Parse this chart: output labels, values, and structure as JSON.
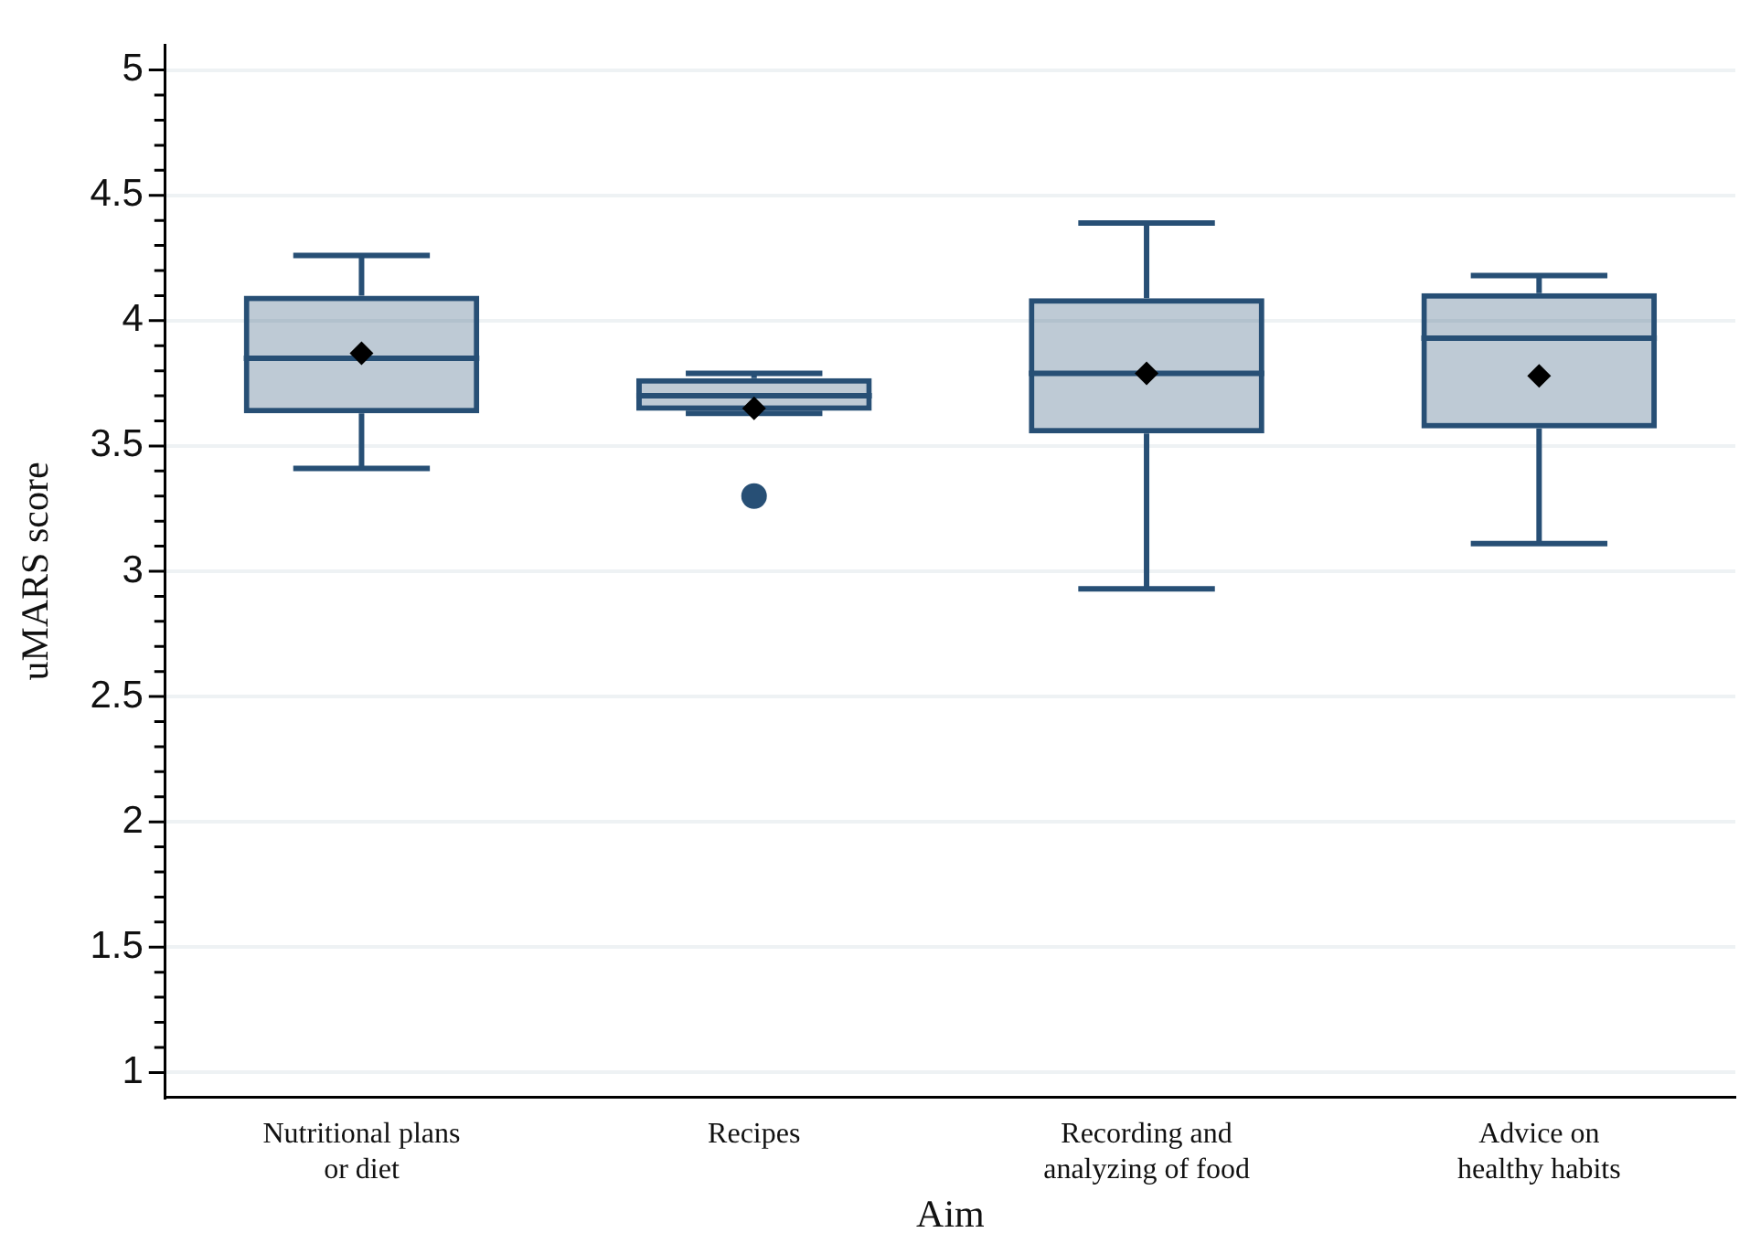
{
  "chart_data": {
    "type": "box",
    "xlabel": "Aim",
    "ylabel": "uMARS score",
    "categories": [
      "Nutritional plans\nor diet",
      "Recipes",
      "Recording and\nanalyzing of food",
      "Advice on\nhealthy habits"
    ],
    "boxes": [
      {
        "low": 3.41,
        "q1": 3.63,
        "median": 3.85,
        "q3": 4.1,
        "high": 4.26,
        "mean": 3.87
      },
      {
        "low": 3.63,
        "q1": 3.64,
        "median": 3.7,
        "q3": 3.77,
        "high": 3.79,
        "mean": 3.65,
        "outliers": [
          3.3
        ]
      },
      {
        "low": 2.93,
        "q1": 3.55,
        "median": 3.79,
        "q3": 4.09,
        "high": 4.39,
        "mean": 3.79
      },
      {
        "low": 3.11,
        "q1": 3.57,
        "median": 3.93,
        "q3": 4.11,
        "high": 4.18,
        "mean": 3.78
      }
    ],
    "color": "#274f75",
    "ylim": [
      0.9,
      5.1
    ],
    "yticks": [
      1,
      {
        "value": 1.1,
        "label": null
      },
      {
        "value": 1.2,
        "label": null
      },
      {
        "value": 1.3,
        "label": null
      },
      {
        "value": 1.4,
        "label": null
      },
      1.5,
      {
        "value": 1.6,
        "label": null
      },
      {
        "value": 1.7,
        "label": null
      },
      {
        "value": 1.8,
        "label": null
      },
      {
        "value": 1.9,
        "label": null
      },
      2,
      {
        "value": 2.1,
        "label": null
      },
      {
        "value": 2.2,
        "label": null
      },
      {
        "value": 2.3,
        "label": null
      },
      {
        "value": 2.4,
        "label": null
      },
      2.5,
      {
        "value": 2.6,
        "label": null
      },
      {
        "value": 2.7,
        "label": null
      },
      {
        "value": 2.8,
        "label": null
      },
      {
        "value": 2.9,
        "label": null
      },
      3,
      {
        "value": 3.1,
        "label": null
      },
      {
        "value": 3.2,
        "label": null
      },
      {
        "value": 3.3,
        "label": null
      },
      {
        "value": 3.4,
        "label": null
      },
      3.5,
      {
        "value": 3.6,
        "label": null
      },
      {
        "value": 3.7,
        "label": null
      },
      {
        "value": 3.8,
        "label": null
      },
      {
        "value": 3.9,
        "label": null
      },
      4,
      {
        "value": 4.1,
        "label": null
      },
      {
        "value": 4.2,
        "label": null
      },
      {
        "value": 4.3,
        "label": null
      },
      {
        "value": 4.4,
        "label": null
      },
      4.5,
      {
        "value": 4.6,
        "label": null
      },
      {
        "value": 4.7,
        "label": null
      },
      {
        "value": 4.8,
        "label": null
      },
      {
        "value": 4.9,
        "label": null
      },
      5
    ],
    "grid": "y",
    "marker": "diamond",
    "legend": false
  }
}
